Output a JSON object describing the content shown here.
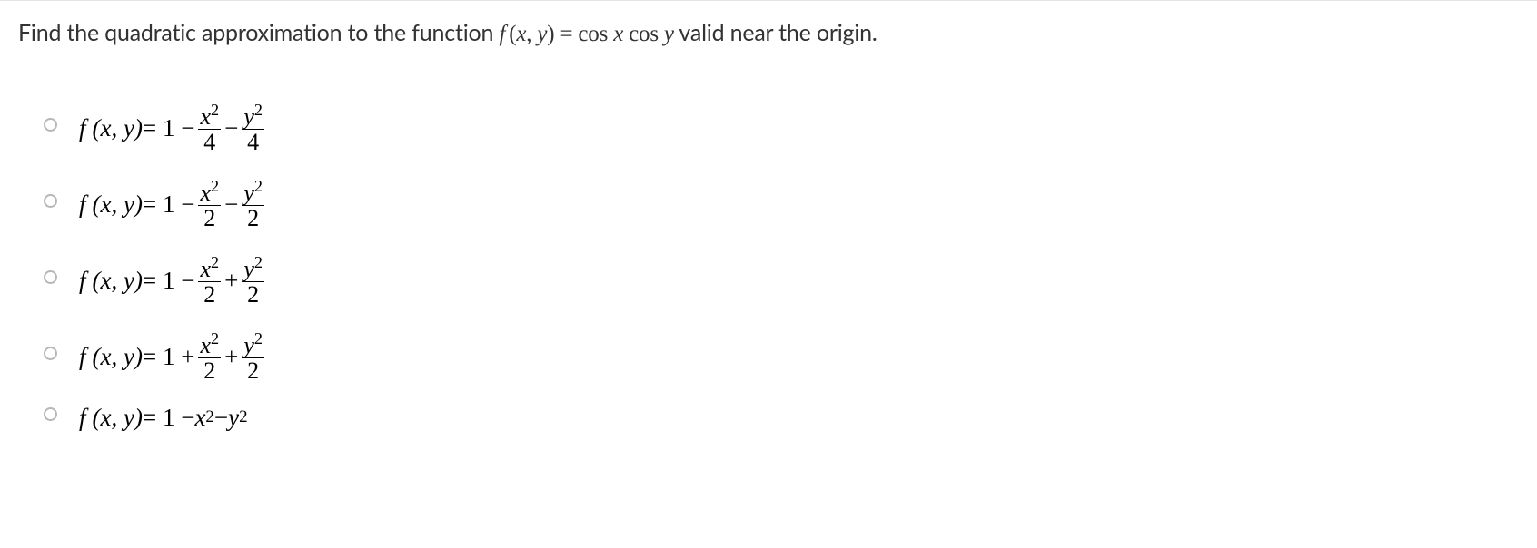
{
  "question": {
    "prefix": "Find the quadratic approximation to the function ",
    "func_letter": "f",
    "args_open": "(",
    "var_x": "x",
    "comma": ", ",
    "var_y": "y",
    "args_close": ")",
    "equals": " = ",
    "rhs_cos_x": "cos",
    "rhs_x": " x",
    "rhs_cos_y": " cos",
    "rhs_y": " y",
    "suffix": " valid near the origin."
  },
  "options": [
    {
      "lhs_f": "f",
      "lhs_args": "(x, y)",
      "eq": " = 1 − ",
      "t1_num_base": "x",
      "t1_num_exp": "2",
      "t1_den": "4",
      "op2": " − ",
      "t2_num_base": "y",
      "t2_num_exp": "2",
      "t2_den": "4",
      "has_frac": true,
      "plain_tail": null
    },
    {
      "lhs_f": "f",
      "lhs_args": "(x, y)",
      "eq": " = 1 − ",
      "t1_num_base": "x",
      "t1_num_exp": "2",
      "t1_den": "2",
      "op2": " − ",
      "t2_num_base": "y",
      "t2_num_exp": "2",
      "t2_den": "2",
      "has_frac": true,
      "plain_tail": null
    },
    {
      "lhs_f": "f",
      "lhs_args": "(x, y)",
      "eq": " = 1 − ",
      "t1_num_base": "x",
      "t1_num_exp": "2",
      "t1_den": "2",
      "op2": " + ",
      "t2_num_base": "y",
      "t2_num_exp": "2",
      "t2_den": "2",
      "has_frac": true,
      "plain_tail": null
    },
    {
      "lhs_f": "f",
      "lhs_args": "(x, y)",
      "eq": " = 1 + ",
      "t1_num_base": "x",
      "t1_num_exp": "2",
      "t1_den": "2",
      "op2": " + ",
      "t2_num_base": "y",
      "t2_num_exp": "2",
      "t2_den": "2",
      "has_frac": true,
      "plain_tail": null
    },
    {
      "lhs_f": "f",
      "lhs_args": "(x, y)",
      "eq": " = 1 − ",
      "has_frac": false,
      "plain_tail_1_base": "x",
      "plain_tail_1_exp": "2",
      "plain_op": " − ",
      "plain_tail_2_base": "y",
      "plain_tail_2_exp": "2"
    }
  ]
}
